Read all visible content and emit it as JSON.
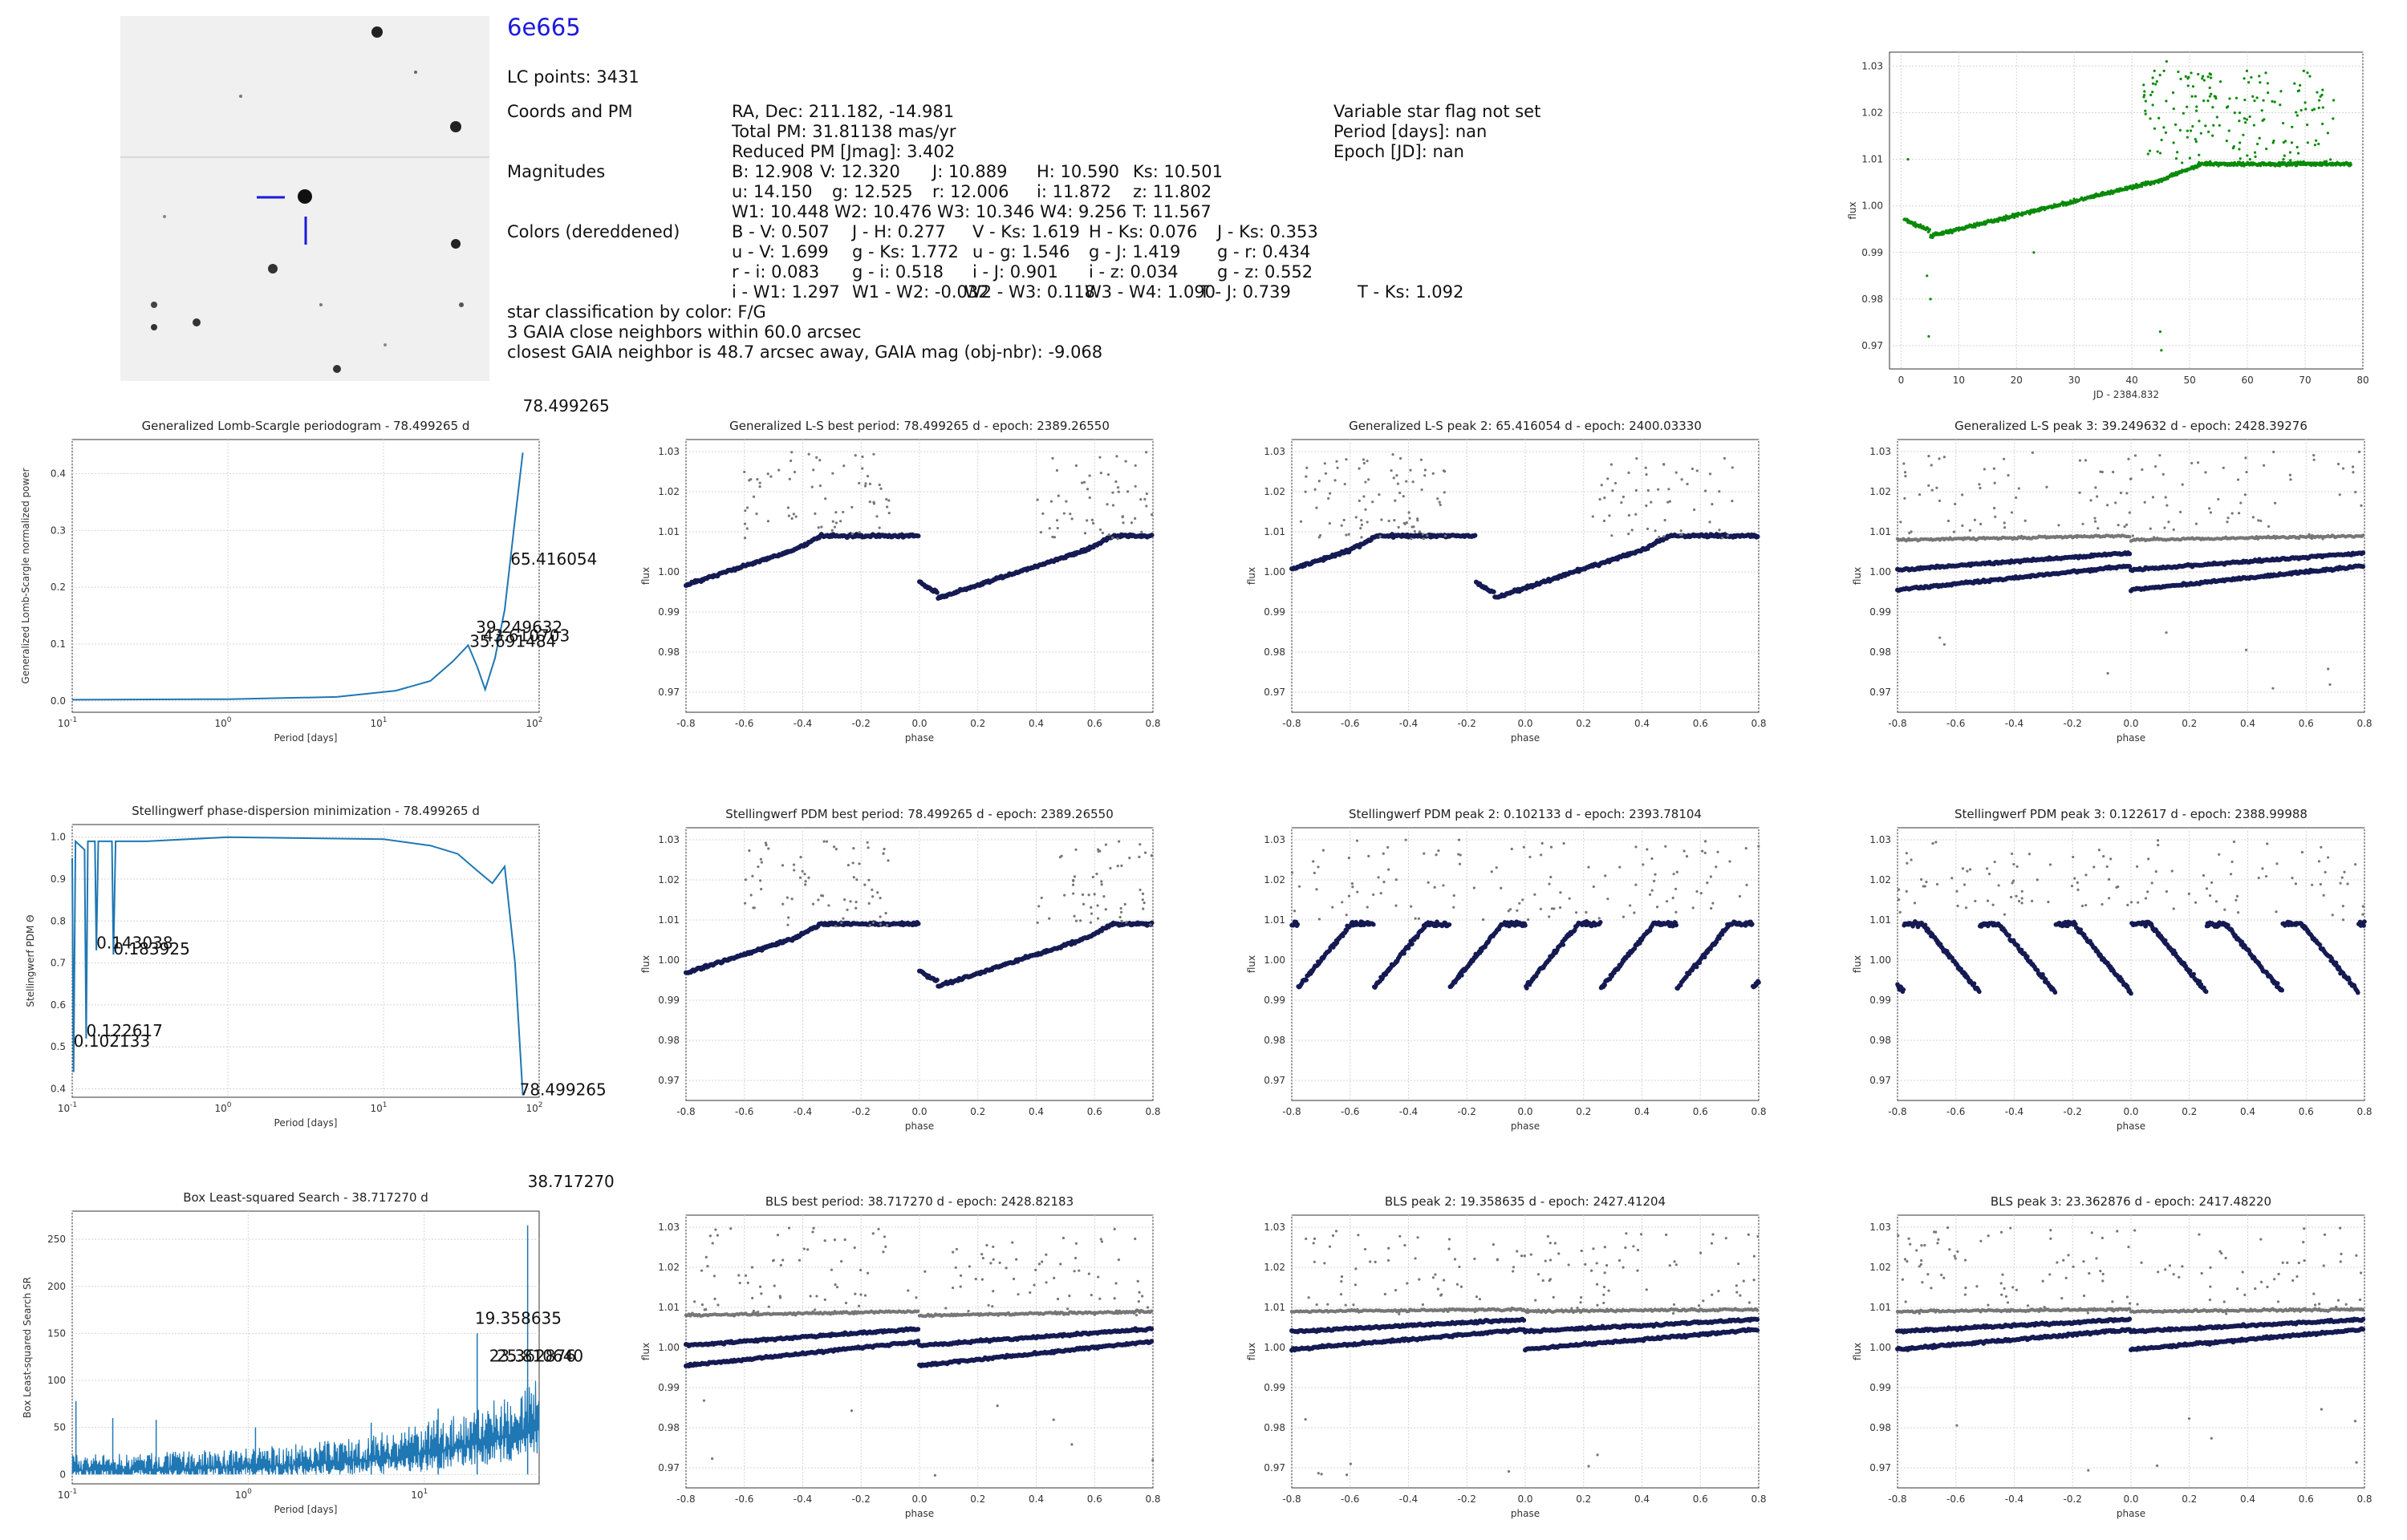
{
  "header": {
    "object_id": "6e665",
    "lc_points": "LC points: 3431",
    "coords_label": "Coords and PM",
    "coords_values": [
      "RA, Dec: 211.182, -14.981",
      "Total PM: 31.81138 mas/yr",
      "Reduced PM [Jmag]: 3.402"
    ],
    "variability": [
      "Variable star flag not set",
      "Period [days]: nan",
      "Epoch [JD]: nan"
    ],
    "magnitudes_label": "Magnitudes",
    "magnitudes": [
      [
        [
          "B: 12.908",
          0
        ],
        [
          "V: 12.320",
          110
        ],
        [
          "J: 10.889",
          250
        ],
        [
          "H: 10.590",
          380
        ],
        [
          "Ks: 10.501",
          500
        ]
      ],
      [
        [
          "u: 14.150",
          0
        ],
        [
          "g: 12.525",
          125
        ],
        [
          "r: 12.006",
          250
        ],
        [
          "i: 11.872",
          380
        ],
        [
          "z: 11.802",
          500
        ]
      ],
      [
        [
          "W1: 10.448 W2: 10.476 W3: 10.346 W4: 9.256",
          0
        ],
        [
          "T: 11.567",
          500
        ]
      ]
    ],
    "colors_label": "Colors (dereddened)",
    "colors": [
      [
        [
          "B - V: 0.507",
          0
        ],
        [
          "J - H: 0.277",
          150
        ],
        [
          "V - Ks: 1.619",
          300
        ],
        [
          "H - Ks: 0.076",
          445
        ],
        [
          "J - Ks: 0.353",
          605
        ]
      ],
      [
        [
          "u - V: 1.699",
          0
        ],
        [
          "g - Ks: 1.772",
          150
        ],
        [
          "u - g: 1.546",
          300
        ],
        [
          "g - J: 1.419",
          445
        ],
        [
          "g - r: 0.434",
          605
        ]
      ],
      [
        [
          "r - i: 0.083",
          0
        ],
        [
          "g - i: 0.518",
          150
        ],
        [
          "i - J: 0.901",
          300
        ],
        [
          "i - z: 0.034",
          445
        ],
        [
          "g - z: 0.552",
          605
        ]
      ],
      [
        [
          "i - W1: 1.297",
          0
        ],
        [
          "W1 - W2: -0.032",
          150
        ],
        [
          "W2 - W3: 0.118",
          290
        ],
        [
          "W3 - W4: 1.090",
          440
        ],
        [
          "T - J: 0.739",
          583
        ],
        [
          "T - Ks: 1.092",
          780
        ]
      ]
    ],
    "classification": "star classification by color: F/G",
    "neighbors": "3 GAIA close neighbors within 60.0 arcsec",
    "closest": "closest GAIA neighbor is 48.7 arcsec away, GAIA mag (obj-nbr): -9.068"
  },
  "colors": {
    "lc": "#0a8a0a",
    "phase_main": "#151a52",
    "phase_other": "#777777",
    "period": "#1f77b4",
    "marker": "#1a1adb"
  },
  "chart_data": [
    {
      "id": "lc",
      "type": "scatter",
      "xlabel": "JD - 2384.832",
      "ylabel": "flux",
      "xlim": [
        -2,
        80
      ],
      "ylim": [
        0.965,
        1.033
      ],
      "xticks": [
        0,
        10,
        20,
        30,
        40,
        50,
        60,
        70,
        80
      ],
      "yticks": [
        0.97,
        0.98,
        0.99,
        1.0,
        1.01,
        1.02,
        1.03
      ],
      "grid": true
    },
    {
      "id": "ls",
      "type": "line",
      "title": "Generalized Lomb-Scargle periodogram - 78.499265 d",
      "xlabel": "Period [days]",
      "ylabel": "Generalized Lomb-Scargle normalized power",
      "xscale": "log",
      "xlim": [
        0.1,
        100
      ],
      "ylim": [
        -0.02,
        0.46
      ],
      "yticks": [
        0.0,
        0.1,
        0.2,
        0.3,
        0.4
      ],
      "grid": true,
      "points": [
        [
          0.1,
          0.002
        ],
        [
          1,
          0.003
        ],
        [
          5,
          0.007
        ],
        [
          12,
          0.018
        ],
        [
          20,
          0.035
        ],
        [
          28,
          0.07
        ],
        [
          35,
          0.098
        ],
        [
          40,
          0.06
        ],
        [
          45,
          0.02
        ],
        [
          52,
          0.075
        ],
        [
          60,
          0.16
        ],
        [
          70,
          0.32
        ],
        [
          78.5,
          0.437
        ]
      ],
      "annotations": [
        {
          "text": "78.499265",
          "x": 78.5,
          "y": 0.437
        },
        {
          "text": "65.416054",
          "x": 65.4,
          "y": 0.24
        },
        {
          "text": "39.249632",
          "x": 39.2,
          "y": 0.12
        },
        {
          "text": "43.610703",
          "x": 43.6,
          "y": 0.105
        },
        {
          "text": "35.691484",
          "x": 35.7,
          "y": 0.095
        }
      ]
    },
    {
      "id": "pdm",
      "type": "line",
      "title": "Stellingwerf phase-dispersion minimization - 78.499265 d",
      "xlabel": "Period [days]",
      "ylabel": "Stellingwerf PDM Θ",
      "xscale": "log",
      "xlim": [
        0.1,
        100
      ],
      "ylim": [
        0.38,
        1.03
      ],
      "yticks": [
        0.4,
        0.5,
        0.6,
        0.7,
        0.8,
        0.9,
        1.0
      ],
      "grid": true,
      "points": [
        [
          0.1,
          0.95
        ],
        [
          0.102,
          0.44
        ],
        [
          0.105,
          0.99
        ],
        [
          0.12,
          0.97
        ],
        [
          0.123,
          0.52
        ],
        [
          0.126,
          0.99
        ],
        [
          0.14,
          0.99
        ],
        [
          0.143,
          0.73
        ],
        [
          0.147,
          0.99
        ],
        [
          0.18,
          0.99
        ],
        [
          0.184,
          0.72
        ],
        [
          0.19,
          0.99
        ],
        [
          0.3,
          0.99
        ],
        [
          1,
          1.0
        ],
        [
          10,
          0.995
        ],
        [
          20,
          0.98
        ],
        [
          30,
          0.96
        ],
        [
          40,
          0.92
        ],
        [
          50,
          0.89
        ],
        [
          60,
          0.93
        ],
        [
          70,
          0.7
        ],
        [
          78.5,
          0.385
        ]
      ],
      "annotations": [
        {
          "text": "0.143038",
          "x": 0.143,
          "y": 0.735
        },
        {
          "text": "0.183925",
          "x": 0.184,
          "y": 0.72
        },
        {
          "text": "0.122617",
          "x": 0.123,
          "y": 0.525
        },
        {
          "text": "0.102133",
          "x": 0.102,
          "y": 0.5
        },
        {
          "text": "78.499265",
          "x": 78.5,
          "y": 0.385
        }
      ]
    },
    {
      "id": "bls",
      "type": "line",
      "title": "Box Least-squared Search - 38.717270 d",
      "xlabel": "Period [days]",
      "ylabel": "Box Least-squared Search SR",
      "xscale": "log",
      "xlim": [
        0.1,
        45
      ],
      "ylim": [
        -10,
        280
      ],
      "yticks": [
        0,
        50,
        100,
        150,
        200,
        250
      ],
      "grid": true,
      "points": [
        [
          0.1,
          5
        ],
        [
          0.5,
          8
        ],
        [
          1,
          10
        ],
        [
          3,
          20
        ],
        [
          8,
          35
        ],
        [
          15,
          55
        ],
        [
          20,
          80
        ],
        [
          30,
          90
        ],
        [
          38.7,
          265
        ],
        [
          40,
          110
        ]
      ],
      "annotations": [
        {
          "text": "38.717270",
          "x": 38.7,
          "y": 265
        },
        {
          "text": "19.358635",
          "x": 19.4,
          "y": 160
        },
        {
          "text": "23.362876",
          "x": 23.4,
          "y": 120
        },
        {
          "text": "25.810640",
          "x": 25.8,
          "y": 120
        }
      ]
    },
    {
      "id": "p1",
      "type": "scatter",
      "title": "Generalized L-S best period: 78.499265 d - epoch: 2389.26550"
    },
    {
      "id": "p2",
      "type": "scatter",
      "title": "Generalized L-S peak 2: 65.416054 d - epoch: 2400.03330"
    },
    {
      "id": "p3",
      "type": "scatter",
      "title": "Generalized L-S peak 3: 39.249632 d - epoch: 2428.39276"
    },
    {
      "id": "p4",
      "type": "scatter",
      "title": "Stellingwerf PDM best period: 78.499265 d - epoch: 2389.26550"
    },
    {
      "id": "p5",
      "type": "scatter",
      "title": "Stellingwerf PDM peak 2: 0.102133 d - epoch: 2393.78104"
    },
    {
      "id": "p6",
      "type": "scatter",
      "title": "Stellingwerf PDM peak 3: 0.122617 d - epoch: 2388.99988"
    },
    {
      "id": "p7",
      "type": "scatter",
      "title": "BLS best period: 38.717270 d - epoch: 2428.82183"
    },
    {
      "id": "p8",
      "type": "scatter",
      "title": "BLS peak 2: 19.358635 d - epoch: 2427.41204"
    },
    {
      "id": "p9",
      "type": "scatter",
      "title": "BLS peak 3: 23.362876 d - epoch: 2417.48220"
    }
  ],
  "phase_axes": {
    "xlabel": "phase",
    "ylabel": "flux",
    "xlim": [
      -0.8,
      0.8
    ],
    "ylim": [
      0.965,
      1.033
    ],
    "xticks": [
      -0.8,
      -0.6,
      -0.4,
      -0.2,
      0.0,
      0.2,
      0.4,
      0.6,
      0.8
    ],
    "yticks": [
      0.97,
      0.98,
      0.99,
      1.0,
      1.01,
      1.02,
      1.03
    ]
  }
}
